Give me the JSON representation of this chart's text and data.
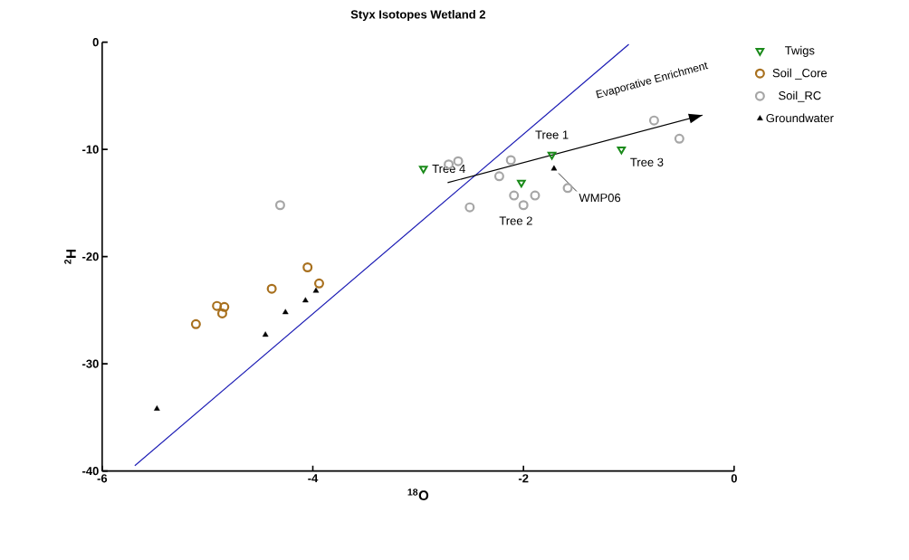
{
  "chart_data": {
    "type": "scatter",
    "title": "Styx Isotopes Wetland 2",
    "xlabel": "$^{18}$O",
    "ylabel": "$^{2}$H",
    "xlim": [
      -6,
      0
    ],
    "xticks": [
      -6,
      -4,
      -2,
      0
    ],
    "ylim": [
      -40,
      0
    ],
    "yticks": [
      -40,
      -30,
      -20,
      -10,
      0
    ],
    "grid": false,
    "legend": "right",
    "series": [
      {
        "name": "Twigs",
        "color": "#1a8a1a",
        "marker": "triangle",
        "x": [
          -2.95,
          -2.02,
          -1.73,
          -1.07
        ],
        "values": [
          -11.8,
          -13.1,
          -10.5,
          -10.0
        ]
      },
      {
        "name": "Soil _Core",
        "color": "#a8701e",
        "marker": "circle",
        "x": [
          -5.11,
          -4.91,
          -4.84,
          -4.86,
          -4.39,
          -4.05,
          -3.94
        ],
        "values": [
          -26.3,
          -24.6,
          -24.7,
          -25.3,
          -23.0,
          -21.0,
          -22.5
        ]
      },
      {
        "name": "Soil_RC",
        "color": "#a6a6a6",
        "marker": "circle",
        "x": [
          -4.31,
          -2.62,
          -2.71,
          -2.12,
          -2.23,
          -2.51,
          -2.09,
          -2.0,
          -1.89,
          -1.58,
          -0.76,
          -0.52
        ],
        "values": [
          -15.2,
          -11.1,
          -11.4,
          -11.0,
          -12.5,
          -15.4,
          -14.3,
          -15.2,
          -14.3,
          -13.6,
          -7.3,
          -9.0
        ]
      },
      {
        "name": "Groundwater",
        "color": "#000000",
        "marker": "triangle",
        "x": [
          -5.48,
          -4.45,
          -4.26,
          -4.07,
          -3.97,
          -1.71
        ],
        "values": [
          -34.2,
          -27.3,
          -25.2,
          -24.1,
          -23.2,
          -11.8
        ]
      },
      {
        "type": "line",
        "color": "#1a1ab4",
        "x": [
          -5.69,
          -1.0
        ],
        "values": [
          -39.5,
          -0.2
        ]
      },
      {
        "type": "line",
        "color": "#000000",
        "x": [
          -2.72,
          -0.3
        ],
        "values": [
          -13.1,
          -6.8
        ]
      }
    ],
    "annotations": [
      {
        "text": "Tree 4",
        "x": -2.95,
        "y": -11.8
      },
      {
        "text": "Tree 1",
        "x": -1.73,
        "y": -10.5
      },
      {
        "text": "Tree 2",
        "x": -2.02,
        "y": -13.1
      },
      {
        "text": "Tree 3",
        "x": -1.07,
        "y": -10.0
      },
      {
        "text": "WMP06",
        "x": -1.71,
        "y": -11.8
      },
      "Evaporative Enrichment"
    ]
  }
}
